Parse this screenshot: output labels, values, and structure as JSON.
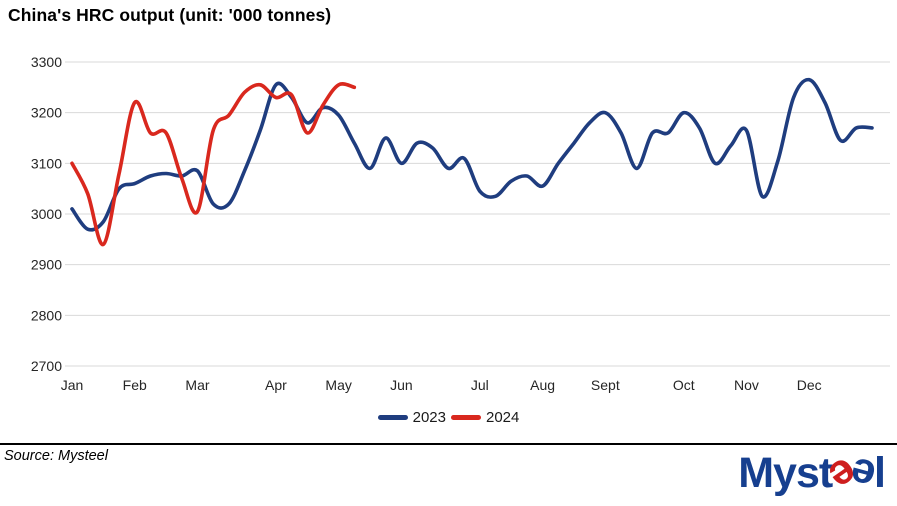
{
  "header": {
    "title": "China's HRC output (unit: '000 tonnes)"
  },
  "chart_data": {
    "type": "line",
    "title": "China's HRC output (unit: '000 tonnes)",
    "unit": "'000 tonnes",
    "x_frequency": "weekly",
    "x_tick_labels": [
      "Jan",
      "Feb",
      "Mar",
      "Apr",
      "May",
      "Jun",
      "Jul",
      "Aug",
      "Sept",
      "Oct",
      "Nov",
      "Dec"
    ],
    "y_ticks": [
      3300,
      3200,
      3100,
      3000,
      2900,
      2800,
      2700
    ],
    "ylim": [
      2700,
      3300
    ],
    "grid": "horizontal",
    "legend_position": "bottom-center",
    "series": [
      {
        "name": "2023",
        "color": "#1F3D7F",
        "values": [
          3010,
          2970,
          2985,
          3050,
          3060,
          3075,
          3080,
          3075,
          3085,
          3020,
          3020,
          3085,
          3165,
          3255,
          3230,
          3180,
          3210,
          3195,
          3140,
          3090,
          3150,
          3100,
          3140,
          3130,
          3090,
          3110,
          3045,
          3035,
          3065,
          3075,
          3055,
          3100,
          3140,
          3180,
          3200,
          3160,
          3090,
          3160,
          3160,
          3200,
          3170,
          3100,
          3135,
          3165,
          3035,
          3105,
          3230,
          3265,
          3220,
          3145,
          3170,
          3170
        ]
      },
      {
        "name": "2024",
        "color": "#D9281E",
        "values": [
          3100,
          3040,
          2940,
          3080,
          3220,
          3160,
          3160,
          3070,
          3005,
          3165,
          3195,
          3240,
          3255,
          3230,
          3235,
          3160,
          3215,
          3255,
          3250
        ]
      }
    ]
  },
  "footer": {
    "source": "Source: Mysteel",
    "logo": {
      "text": "Mysteel",
      "head": "Myst",
      "e1": "e",
      "e2": "e",
      "tail": "l",
      "blue": "#163F8F",
      "red": "#CE1E1E"
    }
  }
}
